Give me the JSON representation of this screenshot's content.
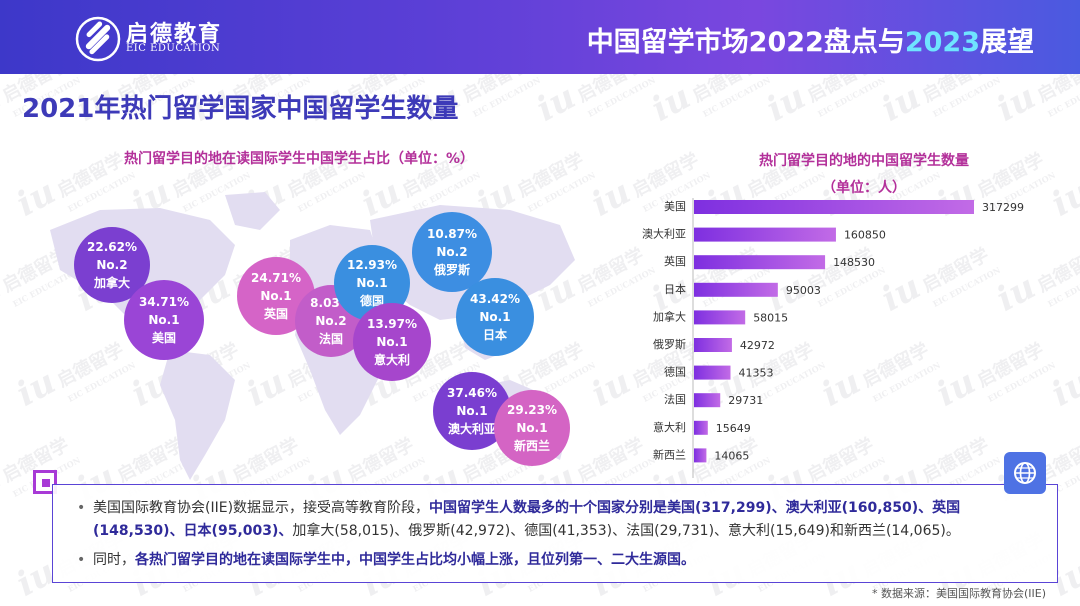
{
  "header": {
    "brand_cn": "启德教育",
    "brand_en": "EIC EDUCATION",
    "title_prefix": "中国留学市场2022盘点与",
    "title_highlight": "2023",
    "title_suffix": "展望"
  },
  "page_title": "2021年热门留学国家中国留学生数量",
  "left_subtitle": "热门留学目的地在读国际学生中国学生占比（单位：%）",
  "right_subtitle_line1": "热门留学目的地的中国留学生数量",
  "right_subtitle_line2": "（单位：人）",
  "watermark": {
    "iu": "iu",
    "cn": "启德留学",
    "en": "EIC EDUCATION"
  },
  "bubbles": [
    {
      "pct": "22.62%",
      "rank": "No.2",
      "country": "加拿大",
      "color": "#7b3fd0"
    },
    {
      "pct": "34.71%",
      "rank": "No.1",
      "country": "美国",
      "color": "#9a45d6"
    },
    {
      "pct": "24.71%",
      "rank": "No.1",
      "country": "英国",
      "color": "#d564c7"
    },
    {
      "pct": "12.93%",
      "rank": "No.1",
      "country": "德国",
      "color": "#3a8fe0"
    },
    {
      "pct": "8.03%",
      "rank": "No.2",
      "country": "法国",
      "color": "#c25dc9"
    },
    {
      "pct": "13.97%",
      "rank": "No.1",
      "country": "意大利",
      "color": "#a646cc"
    },
    {
      "pct": "10.87%",
      "rank": "No.2",
      "country": "俄罗斯",
      "color": "#3d8ee2"
    },
    {
      "pct": "43.42%",
      "rank": "No.1",
      "country": "日本",
      "color": "#3a8fe0"
    },
    {
      "pct": "37.46%",
      "rank": "No.1",
      "country": "澳大利亚",
      "color": "#7a3ed0"
    },
    {
      "pct": "29.23%",
      "rank": "No.1",
      "country": "新西兰",
      "color": "#d464c4"
    }
  ],
  "chart_data": {
    "type": "bar",
    "orientation": "horizontal",
    "title": "热门留学目的地的中国留学生数量",
    "ylabel": "（单位：人）",
    "categories": [
      "美国",
      "澳大利亚",
      "英国",
      "日本",
      "加拿大",
      "俄罗斯",
      "德国",
      "法国",
      "意大利",
      "新西兰"
    ],
    "values": [
      317299,
      160850,
      148530,
      95003,
      58015,
      42972,
      41353,
      29731,
      15649,
      14065
    ],
    "xlim": [
      0,
      317299
    ],
    "grid": false,
    "bar_color_start": "#7e2fe0",
    "bar_color_end": "#c26be6"
  },
  "notes": {
    "item1_a": "美国国际教育协会(IIE)数据显示，接受高等教育阶段，",
    "item1_b": "中国留学生人数最多的十个国家分别是美国(317,299)、澳大利亚(160,850)、英国(148,530)、日本(95,003)、",
    "item1_c": "加拿大(58,015)、俄罗斯(42,972)、德国(41,353)、法国(29,731)、意大利(15,649)和新西兰(14,065)。",
    "item2_a": "同时，",
    "item2_b": "各热门留学目的地在读国际学生中，中国学生占比均小幅上涨，且位列第一、二大生源国。"
  },
  "source": "* 数据来源：美国国际教育协会(IIE)",
  "colors": {
    "primary": "#3d3ab8",
    "accent": "#b3309a",
    "header_bg": "#5b3fd6",
    "highlight": "#6fe4ff"
  },
  "icons": {
    "globe_button": "globe-icon",
    "logo": "logo-icon"
  }
}
